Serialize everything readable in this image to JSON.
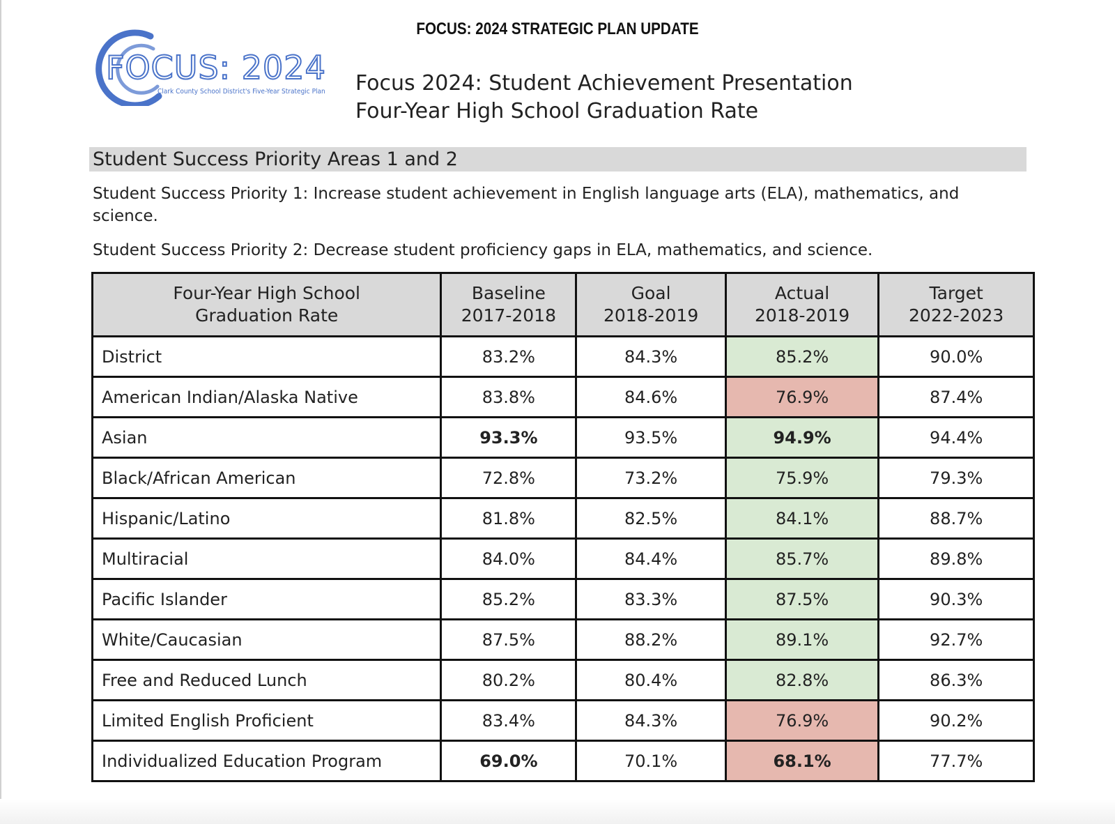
{
  "header": {
    "title": "FOCUS: 2024 STRATEGIC PLAN UPDATE"
  },
  "logo": {
    "text": "FOCUS: 2024",
    "tagline": "Clark County School District's Five-Year Strategic Plan",
    "color": "#4a73c9"
  },
  "presentation": {
    "line1": "Focus 2024: Student Achievement Presentation",
    "line2": "Four-Year High School Graduation Rate"
  },
  "section": {
    "title": "Student Success Priority Areas 1 and 2"
  },
  "priorities": [
    "Student Success Priority 1:  Increase student achievement in English language arts (ELA), mathematics, and science.",
    "Student Success Priority 2:  Decrease student proficiency gaps in ELA, mathematics, and science."
  ],
  "table": {
    "headers": [
      {
        "line1": "Four-Year High School",
        "line2": "Graduation Rate"
      },
      {
        "line1": "Baseline",
        "line2": "2017-2018"
      },
      {
        "line1": "Goal",
        "line2": "2018-2019"
      },
      {
        "line1": "Actual",
        "line2": "2018-2019"
      },
      {
        "line1": "Target",
        "line2": "2022-2023"
      }
    ],
    "rows": [
      {
        "group": "District",
        "baseline": "83.2%",
        "goal": "84.3%",
        "actual": "85.2%",
        "target": "90.0%",
        "status": "met",
        "bold_baseline": false,
        "bold_actual": false
      },
      {
        "group": "American Indian/Alaska Native",
        "baseline": "83.8%",
        "goal": "84.6%",
        "actual": "76.9%",
        "target": "87.4%",
        "status": "not-met",
        "bold_baseline": false,
        "bold_actual": false
      },
      {
        "group": "Asian",
        "baseline": "93.3%",
        "goal": "93.5%",
        "actual": "94.9%",
        "target": "94.4%",
        "status": "met",
        "bold_baseline": true,
        "bold_actual": true
      },
      {
        "group": "Black/African American",
        "baseline": "72.8%",
        "goal": "73.2%",
        "actual": "75.9%",
        "target": "79.3%",
        "status": "met",
        "bold_baseline": false,
        "bold_actual": false
      },
      {
        "group": "Hispanic/Latino",
        "baseline": "81.8%",
        "goal": "82.5%",
        "actual": "84.1%",
        "target": "88.7%",
        "status": "met",
        "bold_baseline": false,
        "bold_actual": false
      },
      {
        "group": "Multiracial",
        "baseline": "84.0%",
        "goal": "84.4%",
        "actual": "85.7%",
        "target": "89.8%",
        "status": "met",
        "bold_baseline": false,
        "bold_actual": false
      },
      {
        "group": "Pacific Islander",
        "baseline": "85.2%",
        "goal": "83.3%",
        "actual": "87.5%",
        "target": "90.3%",
        "status": "met",
        "bold_baseline": false,
        "bold_actual": false
      },
      {
        "group": "White/Caucasian",
        "baseline": "87.5%",
        "goal": "88.2%",
        "actual": "89.1%",
        "target": "92.7%",
        "status": "met",
        "bold_baseline": false,
        "bold_actual": false
      },
      {
        "group": "Free and Reduced Lunch",
        "baseline": "80.2%",
        "goal": "80.4%",
        "actual": "82.8%",
        "target": "86.3%",
        "status": "met",
        "bold_baseline": false,
        "bold_actual": false
      },
      {
        "group": "Limited English Proficient",
        "baseline": "83.4%",
        "goal": "84.3%",
        "actual": "76.9%",
        "target": "90.2%",
        "status": "not-met",
        "bold_baseline": false,
        "bold_actual": false
      },
      {
        "group": "Individualized Education Program",
        "baseline": "69.0%",
        "goal": "70.1%",
        "actual": "68.1%",
        "target": "77.7%",
        "status": "not-met",
        "bold_baseline": true,
        "bold_actual": true
      }
    ],
    "colors": {
      "met": "#d9ead3",
      "not_met": "#e6b8af",
      "header_bg": "#d9d9d9"
    }
  }
}
